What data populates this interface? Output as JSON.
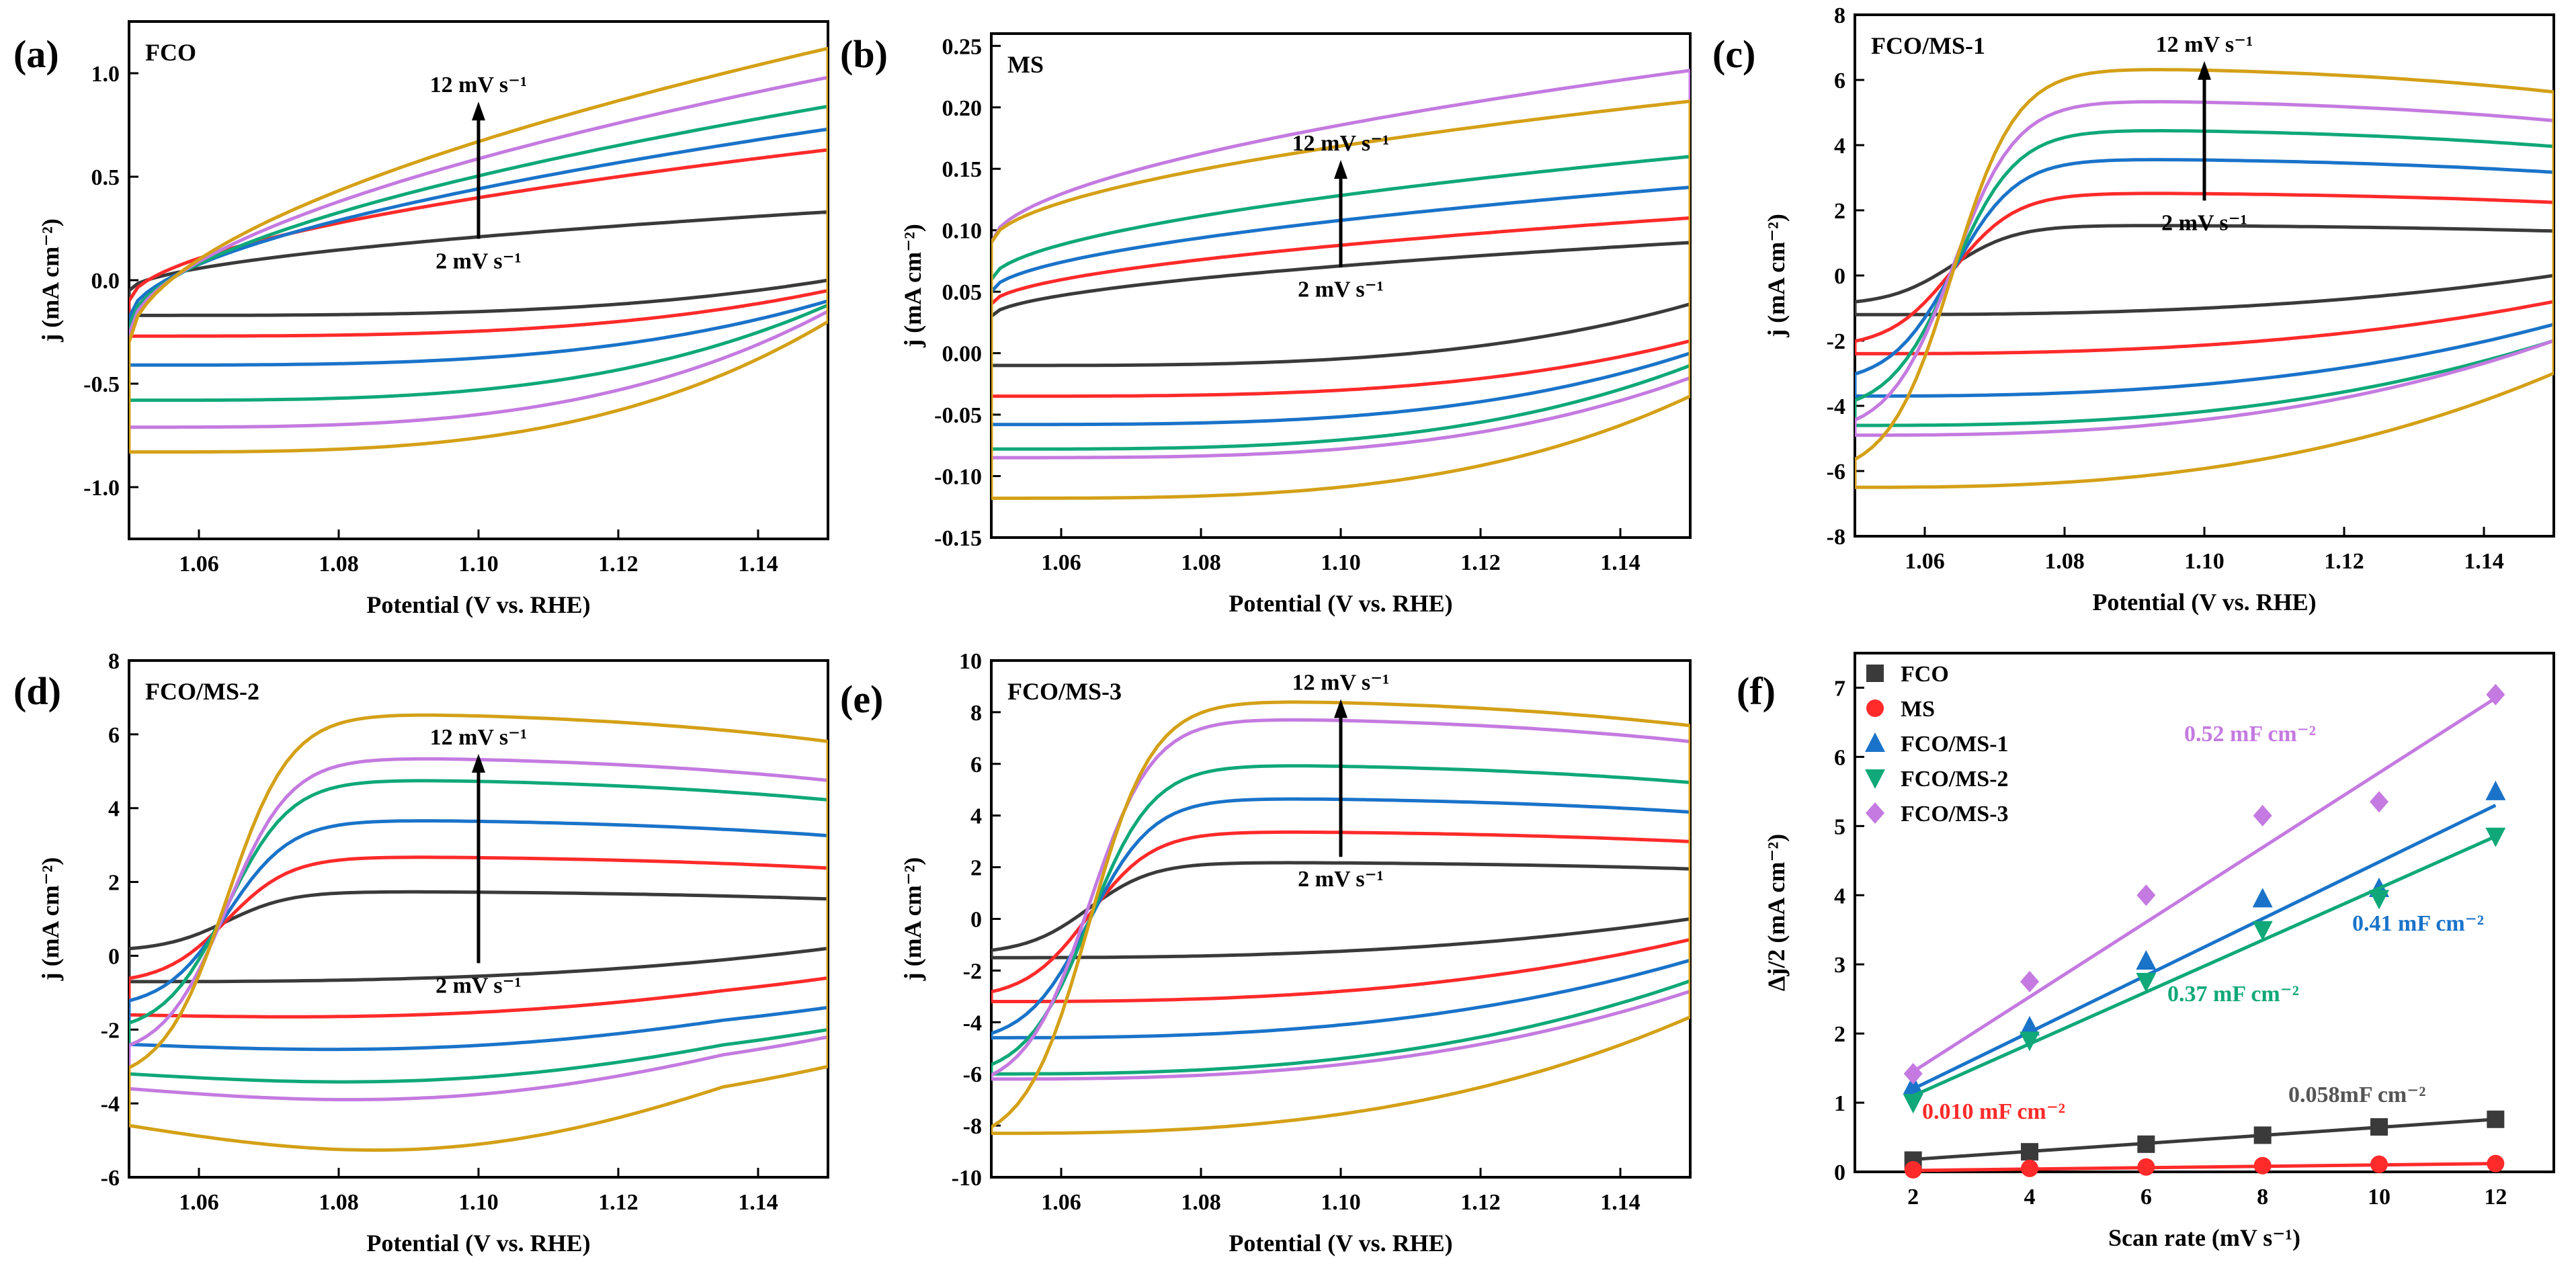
{
  "figure": {
    "colors": {
      "2": "#3a3a3a",
      "4": "#ff2a2a",
      "6": "#1a73c9",
      "8": "#10a878",
      "10": "#c47ae0",
      "12": "#d4a017"
    },
    "panels": [
      {
        "id": "a",
        "panel_label": "(a)",
        "title": "FCO",
        "xlabel": "Potential (V vs. RHE)",
        "ylabel": "j (mA cm⁻²)",
        "xlim": [
          1.05,
          1.15
        ],
        "ylim": [
          -1.25,
          1.25
        ],
        "xticks": [
          1.06,
          1.08,
          1.1,
          1.12,
          1.14
        ],
        "xtick_labels": [
          "1.06",
          "1.08",
          "1.10",
          "1.12",
          "1.14"
        ],
        "yticks": [
          -1.0,
          -0.5,
          0.0,
          0.5,
          1.0
        ],
        "ytick_labels": [
          "-1.0",
          "-0.5",
          "0.0",
          "0.5",
          "1.0"
        ],
        "rates": [
          "2",
          "4",
          "6",
          "8",
          "10",
          "12"
        ],
        "anodic_start": [
          -0.05,
          -0.1,
          -0.18,
          -0.22,
          -0.26,
          -0.3
        ],
        "anodic_end": [
          0.33,
          0.63,
          0.73,
          0.84,
          0.98,
          1.12
        ],
        "cathodic_start": [
          -0.17,
          -0.27,
          -0.41,
          -0.58,
          -0.71,
          -0.83
        ],
        "cathodic_end": [
          0.0,
          -0.05,
          -0.1,
          -0.12,
          -0.15,
          -0.2
        ],
        "shape": "rect",
        "arrow": {
          "top_label": "12 mV s⁻¹",
          "bottom_label": "2 mV s⁻¹",
          "x": 1.1,
          "y_top": 0.85,
          "y_bottom": 0.2
        }
      },
      {
        "id": "b",
        "panel_label": "(b)",
        "title": "MS",
        "xlabel": "Potential (V vs. RHE)",
        "ylabel": "j (mA cm⁻²)",
        "xlim": [
          1.05,
          1.15
        ],
        "ylim": [
          -0.15,
          0.26
        ],
        "xticks": [
          1.06,
          1.08,
          1.1,
          1.12,
          1.14
        ],
        "xtick_labels": [
          "1.06",
          "1.08",
          "1.10",
          "1.12",
          "1.14"
        ],
        "yticks": [
          -0.15,
          -0.1,
          -0.05,
          0.0,
          0.05,
          0.1,
          0.15,
          0.2,
          0.25
        ],
        "ytick_labels": [
          "-0.15",
          "-0.10",
          "-0.05",
          "0.00",
          "0.05",
          "0.10",
          "0.15",
          "0.20",
          "0.25"
        ],
        "rates": [
          "2",
          "4",
          "6",
          "8",
          "10",
          "12"
        ],
        "anodic_start": [
          0.03,
          0.04,
          0.05,
          0.06,
          0.09,
          0.09
        ],
        "anodic_end": [
          0.09,
          0.11,
          0.135,
          0.16,
          0.23,
          0.205
        ],
        "cathodic_start": [
          -0.01,
          -0.035,
          -0.058,
          -0.078,
          -0.085,
          -0.118
        ],
        "cathodic_end": [
          0.04,
          0.01,
          0.0,
          -0.01,
          -0.02,
          -0.035
        ],
        "shape": "rect",
        "arrow": {
          "top_label": "12 mV s⁻¹",
          "bottom_label": "2 mV s⁻¹",
          "x": 1.1,
          "y_top": 0.155,
          "y_bottom": 0.07
        }
      },
      {
        "id": "c",
        "panel_label": "(c)",
        "title": "FCO/MS-1",
        "xlabel": "Potential (V vs. RHE)",
        "ylabel": "j (mA cm⁻²)",
        "xlim": [
          1.05,
          1.15
        ],
        "ylim": [
          -8,
          8
        ],
        "xticks": [
          1.06,
          1.08,
          1.1,
          1.12,
          1.14
        ],
        "xtick_labels": [
          "1.06",
          "1.08",
          "1.10",
          "1.12",
          "1.14"
        ],
        "yticks": [
          -8,
          -6,
          -4,
          -2,
          0,
          2,
          4,
          6,
          8
        ],
        "ytick_labels": [
          "-8",
          "-6",
          "-4",
          "-2",
          "0",
          "2",
          "4",
          "6",
          "8"
        ],
        "rates": [
          "2",
          "4",
          "6",
          "8",
          "10",
          "12"
        ],
        "plateau": [
          1.55,
          2.55,
          3.6,
          4.5,
          5.4,
          6.4
        ],
        "anodic_start": [
          -0.8,
          -2.0,
          -3.0,
          -3.8,
          -4.4,
          -5.6
        ],
        "cathodic_start": [
          -1.2,
          -2.4,
          -3.7,
          -4.6,
          -4.9,
          -6.5
        ],
        "cathodic_end": [
          0.0,
          -0.8,
          -1.5,
          -2.0,
          -2.0,
          -3.0
        ],
        "shape": "sigmoid",
        "arrow": {
          "top_label": "12 mV s⁻¹",
          "bottom_label": "2 mV s⁻¹",
          "x": 1.1,
          "y_top": 6.5,
          "y_bottom": 2.3
        }
      },
      {
        "id": "d",
        "panel_label": "(d)",
        "title": "FCO/MS-2",
        "xlabel": "Potential (V vs. RHE)",
        "ylabel": "j (mA cm⁻²)",
        "xlim": [
          1.05,
          1.15
        ],
        "ylim": [
          -6,
          8
        ],
        "xticks": [
          1.06,
          1.08,
          1.1,
          1.12,
          1.14
        ],
        "xtick_labels": [
          "1.06",
          "1.08",
          "1.10",
          "1.12",
          "1.14"
        ],
        "yticks": [
          -6,
          -4,
          -2,
          0,
          2,
          4,
          6,
          8
        ],
        "ytick_labels": [
          "-6",
          "-4",
          "-2",
          "0",
          "2",
          "4",
          "6",
          "8"
        ],
        "rates": [
          "2",
          "4",
          "6",
          "8",
          "10",
          "12"
        ],
        "plateau": [
          1.75,
          2.7,
          3.7,
          4.8,
          5.4,
          6.6
        ],
        "anodic_start": [
          0.2,
          -0.6,
          -1.2,
          -1.8,
          -2.4,
          -3.0
        ],
        "cathodic_start": [
          -0.7,
          -1.6,
          -2.4,
          -3.2,
          -3.6,
          -4.6
        ],
        "cathodic_end": [
          0.2,
          -0.6,
          -1.4,
          -2.0,
          -2.2,
          -3.0
        ],
        "dip": [
          0.0,
          0.1,
          0.2,
          0.3,
          0.4,
          0.8
        ],
        "shape": "sigmoid",
        "arrow": {
          "top_label": "12 mV s⁻¹",
          "bottom_label": "2 mV s⁻¹",
          "x": 1.1,
          "y_top": 5.4,
          "y_bottom": -0.2
        }
      },
      {
        "id": "e",
        "panel_label": "(e)",
        "title": "FCO/MS-3",
        "xlabel": "Potential (V vs. RHE)",
        "ylabel": "j (mA cm⁻²)",
        "xlim": [
          1.05,
          1.15
        ],
        "ylim": [
          -10,
          10
        ],
        "xticks": [
          1.06,
          1.08,
          1.1,
          1.12,
          1.14
        ],
        "xtick_labels": [
          "1.06",
          "1.08",
          "1.10",
          "1.12",
          "1.14"
        ],
        "yticks": [
          -10,
          -8,
          -6,
          -4,
          -2,
          0,
          2,
          4,
          6,
          8,
          10
        ],
        "ytick_labels": [
          "-10",
          "-8",
          "-6",
          "-4",
          "-2",
          "0",
          "2",
          "4",
          "6",
          "8",
          "10"
        ],
        "rates": [
          "2",
          "4",
          "6",
          "8",
          "10",
          "12"
        ],
        "plateau": [
          2.2,
          3.4,
          4.7,
          6.0,
          7.8,
          8.5
        ],
        "anodic_start": [
          -1.2,
          -2.8,
          -4.4,
          -5.6,
          -6.0,
          -8.0
        ],
        "cathodic_start": [
          -1.5,
          -3.2,
          -4.6,
          -6.0,
          -6.2,
          -8.3
        ],
        "cathodic_end": [
          0.0,
          -0.8,
          -1.6,
          -2.4,
          -2.8,
          -3.8
        ],
        "shape": "sigmoid",
        "arrow": {
          "top_label": "12 mV s⁻¹",
          "bottom_label": "2 mV s⁻¹",
          "x": 1.1,
          "y_top": 8.4,
          "y_bottom": 2.4
        }
      }
    ],
    "panel_f": {
      "id": "f",
      "panel_label": "(f)",
      "xlabel": "Scan rate (mV s⁻¹)",
      "ylabel": "Δj/2 (mA cm⁻²)",
      "xlim": [
        1,
        13
      ],
      "ylim": [
        0,
        7.5
      ],
      "xticks": [
        2,
        4,
        6,
        8,
        10,
        12
      ],
      "xtick_labels": [
        "2",
        "4",
        "6",
        "8",
        "10",
        "12"
      ],
      "yticks": [
        0,
        1,
        2,
        3,
        4,
        5,
        6,
        7
      ],
      "ytick_labels": [
        "0",
        "1",
        "2",
        "3",
        "4",
        "5",
        "6",
        "7"
      ],
      "x": [
        2,
        4,
        6,
        8,
        10,
        12
      ],
      "series": [
        {
          "name": "FCO",
          "marker": "square",
          "color": "#3a3a3a",
          "values": [
            0.17,
            0.29,
            0.4,
            0.53,
            0.65,
            0.76
          ],
          "fit": [
            0.18,
            0.76
          ],
          "annotation": "0.058mF cm⁻²"
        },
        {
          "name": "MS",
          "marker": "circle",
          "color": "#ff2a2a",
          "values": [
            0.03,
            0.05,
            0.07,
            0.09,
            0.11,
            0.12
          ],
          "fit": [
            0.02,
            0.12
          ],
          "annotation": "0.010 mF cm⁻²"
        },
        {
          "name": "FCO/MS-1",
          "marker": "triangle-up",
          "color": "#1a73c9",
          "values": [
            1.25,
            2.1,
            3.05,
            3.95,
            4.1,
            5.5
          ],
          "fit": [
            1.2,
            5.3
          ],
          "annotation": "0.41 mF cm⁻²"
        },
        {
          "name": "FCO/MS-2",
          "marker": "triangle-down",
          "color": "#10a878",
          "values": [
            1.0,
            1.9,
            2.75,
            3.5,
            3.95,
            4.85
          ],
          "fit": [
            1.1,
            4.85
          ],
          "annotation": "0.37 mF cm⁻²"
        },
        {
          "name": "FCO/MS-3",
          "marker": "diamond",
          "color": "#c47ae0",
          "values": [
            1.42,
            2.75,
            4.0,
            5.15,
            5.35,
            6.9
          ],
          "fit": [
            1.45,
            6.85
          ],
          "annotation": "0.52 mF cm⁻²"
        }
      ]
    }
  }
}
